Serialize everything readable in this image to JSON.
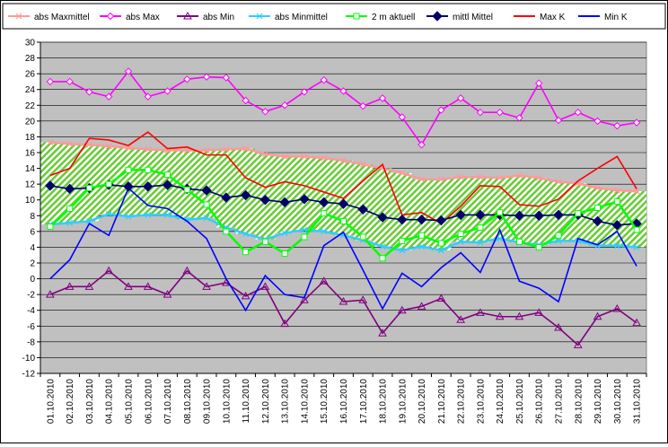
{
  "chart_data": {
    "type": "line",
    "title": "",
    "xlabel": "",
    "ylabel": "",
    "ylim": [
      -12,
      30
    ],
    "yticks": [
      30,
      28,
      26,
      24,
      22,
      20,
      18,
      16,
      14,
      12,
      10,
      8,
      6,
      4,
      2,
      0,
      -2,
      -4,
      -6,
      -8,
      -10,
      -12
    ],
    "grid": true,
    "legend_position": "top",
    "plot_background": "#c0c0c0",
    "categories": [
      "01.10.2010",
      "02.10.2010",
      "03.10.2010",
      "04.10.2010",
      "05.10.2010",
      "06.10.2010",
      "07.10.2010",
      "08.10.2010",
      "09.10.2010",
      "10.10.2010",
      "11.10.2010",
      "12.10.2010",
      "13.10.2010",
      "14.10.2010",
      "15.10.2010",
      "16.10.2010",
      "17.10.2010",
      "18.10.2010",
      "19.10.2010",
      "20.10.2010",
      "21.10.2010",
      "22.10.2010",
      "23.10.2010",
      "24.10.2010",
      "25.10.2010",
      "26.10.2010",
      "27.10.2010",
      "28.10.2010",
      "29.10.2010",
      "30.10.2010",
      "31.10.2010"
    ],
    "band": {
      "upper": "abs Maxmittel",
      "lower": "abs Minmittel",
      "fill": "#66cc33",
      "hatch": "diagonal"
    },
    "series": [
      {
        "name": "abs Maxmittel",
        "color": "#ff9999",
        "marker": "x",
        "values": [
          17.3,
          17.1,
          17.0,
          16.8,
          16.6,
          16.4,
          16.3,
          16.3,
          16.3,
          16.4,
          16.5,
          15.8,
          15.5,
          15.5,
          15.3,
          15.0,
          14.5,
          14.0,
          13.4,
          12.6,
          12.6,
          12.9,
          12.9,
          12.8,
          13.1,
          12.8,
          12.3,
          12.1,
          11.5,
          11.2,
          11.1
        ]
      },
      {
        "name": "abs Max",
        "color": "#ff00ff",
        "marker": "diamond-open",
        "values": [
          25.0,
          25.0,
          23.7,
          23.1,
          26.3,
          23.1,
          23.8,
          25.3,
          25.6,
          25.5,
          22.6,
          21.2,
          22.0,
          23.7,
          25.2,
          23.8,
          21.9,
          22.9,
          20.5,
          17.0,
          21.4,
          22.9,
          21.1,
          21.1,
          20.4,
          24.8,
          20.1,
          21.1,
          20.0,
          19.4,
          19.8
        ]
      },
      {
        "name": "abs Min",
        "color": "#800080",
        "marker": "triangle-open",
        "values": [
          -2.0,
          -1.0,
          -1.0,
          1.0,
          -1.0,
          -1.0,
          -2.0,
          1.0,
          -1.0,
          -0.5,
          -2.2,
          -1.0,
          -5.7,
          -2.7,
          -0.3,
          -2.9,
          -2.7,
          -6.9,
          -4.0,
          -3.5,
          -2.5,
          -5.2,
          -4.3,
          -4.8,
          -4.8,
          -4.3,
          -6.2,
          -8.4,
          -4.8,
          -3.8,
          -5.6
        ]
      },
      {
        "name": "abs Minmittel",
        "color": "#33ccff",
        "marker": "x",
        "values": [
          6.9,
          7.1,
          7.3,
          8.2,
          7.9,
          8.1,
          8.1,
          7.5,
          7.7,
          6.5,
          5.7,
          5.0,
          5.8,
          6.2,
          6.0,
          5.5,
          4.9,
          4.1,
          3.6,
          4.1,
          3.6,
          4.7,
          4.6,
          5.1,
          4.6,
          4.3,
          4.8,
          4.8,
          4.2,
          4.2,
          4.0
        ]
      },
      {
        "name": "2 m aktuell",
        "color": "#00ff00",
        "marker": "square-open",
        "values": [
          6.6,
          8.9,
          11.5,
          12.0,
          13.8,
          13.8,
          13.2,
          11.3,
          9.4,
          6.0,
          3.4,
          4.7,
          3.2,
          5.3,
          8.3,
          7.3,
          5.3,
          2.6,
          4.8,
          5.5,
          4.5,
          5.7,
          6.5,
          8.4,
          4.7,
          4.0,
          5.5,
          8.3,
          9.0,
          9.8,
          6.2
        ]
      },
      {
        "name": "mittl Mittel",
        "color": "#000066",
        "marker": "diamond",
        "values": [
          11.8,
          11.4,
          11.5,
          11.9,
          11.7,
          11.7,
          11.9,
          11.4,
          11.2,
          10.3,
          10.6,
          10.0,
          9.7,
          10.1,
          9.7,
          9.5,
          8.8,
          7.8,
          7.5,
          7.5,
          7.4,
          8.1,
          8.1,
          8.1,
          8.0,
          8.0,
          8.1,
          8.1,
          7.3,
          6.8,
          7.0
        ]
      },
      {
        "name": "Max K",
        "color": "#ff0000",
        "marker": "none",
        "values": [
          13.1,
          14.0,
          17.8,
          17.6,
          16.9,
          18.6,
          16.5,
          16.7,
          15.7,
          15.7,
          12.8,
          11.6,
          12.3,
          11.8,
          11.0,
          10.2,
          12.4,
          14.5,
          8.1,
          8.4,
          7.0,
          9.2,
          11.8,
          11.7,
          9.4,
          9.2,
          10.1,
          12.4,
          14.0,
          15.5,
          11.4
        ]
      },
      {
        "name": "Min K",
        "color": "#0000ff",
        "marker": "none",
        "values": [
          0.0,
          2.4,
          7.0,
          5.5,
          11.5,
          9.3,
          8.9,
          7.3,
          5.1,
          0.0,
          -4.0,
          0.4,
          -2.0,
          -2.4,
          4.2,
          5.9,
          1.1,
          -3.8,
          0.7,
          -1.0,
          1.4,
          3.3,
          0.8,
          6.2,
          -0.3,
          -1.2,
          -2.9,
          5.1,
          4.3,
          6.0,
          1.6
        ]
      }
    ]
  }
}
